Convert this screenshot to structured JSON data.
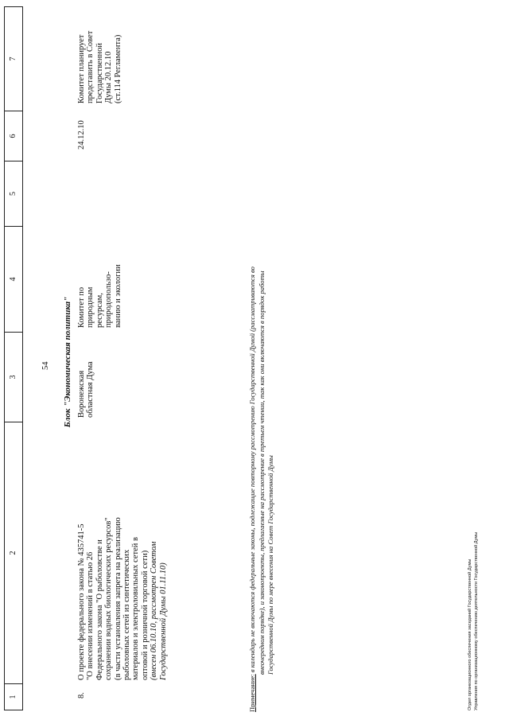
{
  "page_number": "54",
  "table": {
    "column_numbers": [
      "1",
      "2",
      "3",
      "4",
      "5",
      "6",
      "7"
    ],
    "block_title": "Блок \"Экономическая политика\"",
    "rows": [
      {
        "num": "8.",
        "bill": [
          "О проекте федерального закона № 435741-5",
          "\"О внесении изменений в статью 26",
          "Федерального закона \"О рыболовстве и",
          "сохранении водных биологических ресурсов\"",
          "(в части установления запрета на реализацию",
          "рыболовных сетей из синтетических",
          "материалов и электроловильных сетей в",
          "оптовой и розничной торговой сети)"
        ],
        "bill_italic": [
          "(внесен 06.10.10, рассмотрен Советом",
          "Государственной Думы 01.11.10)"
        ],
        "initiator": [
          "Воронежская",
          "областная Дума"
        ],
        "committee": [
          "Комитет по",
          "природным",
          "ресурсам,",
          "природопользо-",
          "ванию и экологии"
        ],
        "col5": "",
        "date": "24.12.10",
        "remark": [
          "Комитет планирует",
          "представить в Совет",
          "Государственной",
          "Думы 20.12.10",
          "(ст.114 Регламента)"
        ]
      }
    ]
  },
  "note": {
    "label": "Примечание:",
    "lines": [
      " в календарь не включаются федеральные законы, подлежащие повторному рассмотрению Государственной Думой (рассматриваются во",
      "внеочередном порядке), и законопроекты, предлагаемые на рассмотрение в третьем чтении, так как они включаются в порядок работы",
      "Государственной Думы по мере внесения на Совет Государственной Думы"
    ]
  },
  "footer": [
    "Отдел организационного обеспечения заседаний Государственной Думы",
    "Управления по организационному обеспечению деятельности Государственной Думы"
  ]
}
